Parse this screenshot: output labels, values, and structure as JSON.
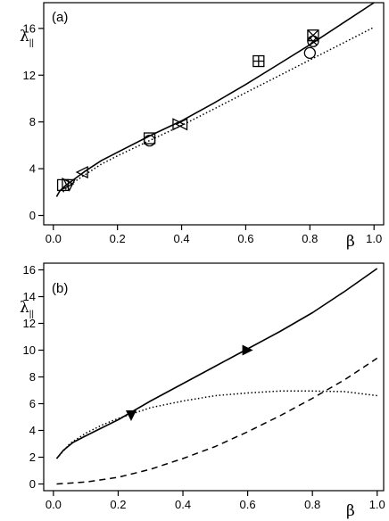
{
  "chart_data": [
    {
      "type": "line",
      "panel_label": "(a)",
      "xlabel": "β",
      "ylabel": "λ",
      "ylabel_sub": "||",
      "xlim": [
        -0.03,
        1.03
      ],
      "ylim": [
        -0.8,
        18.2
      ],
      "xticks": [
        0.0,
        0.2,
        0.4,
        0.6,
        0.8,
        1.0
      ],
      "xtick_labels": [
        "0.0",
        "0.2",
        "0.4",
        "0.6",
        "0.8",
        "1.0"
      ],
      "yticks": [
        0,
        4,
        8,
        12,
        16
      ],
      "ytick_labels": [
        "0",
        "4",
        "8",
        "12",
        "16"
      ],
      "grid": false,
      "series": [
        {
          "style": "solid",
          "x": [
            0.01,
            0.02,
            0.04,
            0.07,
            0.1,
            0.15,
            0.2,
            0.3,
            0.4,
            0.5,
            0.6,
            0.7,
            0.8,
            0.9,
            1.0
          ],
          "y": [
            1.6,
            2.1,
            2.6,
            3.2,
            3.8,
            4.7,
            5.4,
            6.8,
            8.1,
            9.6,
            11.2,
            12.9,
            14.6,
            16.4,
            18.2
          ]
        },
        {
          "style": "dotted",
          "x": [
            0.03,
            0.05,
            0.1,
            0.15,
            0.2,
            0.3,
            0.4,
            0.5,
            0.6,
            0.7,
            0.8,
            0.9,
            1.0
          ],
          "y": [
            2.0,
            2.6,
            3.5,
            4.4,
            5.1,
            6.4,
            7.7,
            9.1,
            10.5,
            11.9,
            13.3,
            14.7,
            16.1
          ]
        }
      ],
      "markers": [
        {
          "x": 0.03,
          "y": 2.6,
          "shape": "square"
        },
        {
          "x": 0.045,
          "y": 2.7,
          "shape": "triangle-right"
        },
        {
          "x": 0.05,
          "y": 2.6,
          "shape": "triangle-down"
        },
        {
          "x": 0.09,
          "y": 3.7,
          "shape": "triangle-left"
        },
        {
          "x": 0.3,
          "y": 6.6,
          "shape": "square"
        },
        {
          "x": 0.3,
          "y": 6.4,
          "shape": "circle"
        },
        {
          "x": 0.39,
          "y": 7.8,
          "shape": "triangle-right"
        },
        {
          "x": 0.4,
          "y": 7.8,
          "shape": "triangle-left"
        },
        {
          "x": 0.64,
          "y": 13.2,
          "shape": "square-plus"
        },
        {
          "x": 0.8,
          "y": 13.9,
          "shape": "circle"
        },
        {
          "x": 0.81,
          "y": 14.9,
          "shape": "circle-x"
        },
        {
          "x": 0.81,
          "y": 15.4,
          "shape": "square-x"
        }
      ]
    },
    {
      "type": "line",
      "panel_label": "(b)",
      "xlabel": "β",
      "ylabel": "λ",
      "ylabel_sub": "||",
      "xlim": [
        -0.03,
        1.02
      ],
      "ylim": [
        -0.5,
        16.5
      ],
      "xticks": [
        0.0,
        0.2,
        0.4,
        0.6,
        0.8,
        1.0
      ],
      "xtick_labels": [
        "0.0",
        "0.2",
        "0.4",
        "0.6",
        "0.8",
        "1.0"
      ],
      "yticks": [
        0,
        2,
        4,
        6,
        8,
        10,
        12,
        14,
        16
      ],
      "ytick_labels": [
        "0",
        "2",
        "4",
        "6",
        "8",
        "10",
        "12",
        "14",
        "16"
      ],
      "grid": false,
      "series": [
        {
          "style": "solid",
          "x": [
            0.01,
            0.03,
            0.06,
            0.1,
            0.15,
            0.2,
            0.3,
            0.4,
            0.5,
            0.6,
            0.7,
            0.8,
            0.9,
            1.0
          ],
          "y": [
            1.9,
            2.5,
            3.1,
            3.6,
            4.2,
            4.8,
            6.2,
            7.5,
            8.8,
            10.1,
            11.4,
            12.8,
            14.4,
            16.1
          ]
        },
        {
          "style": "dotted",
          "x": [
            0.01,
            0.05,
            0.1,
            0.15,
            0.2,
            0.3,
            0.4,
            0.5,
            0.6,
            0.7,
            0.8,
            0.9,
            1.0
          ],
          "y": [
            1.9,
            3.0,
            3.8,
            4.4,
            4.9,
            5.7,
            6.2,
            6.6,
            6.8,
            6.95,
            6.95,
            6.9,
            6.6
          ]
        },
        {
          "style": "dashed",
          "x": [
            0.01,
            0.1,
            0.2,
            0.3,
            0.4,
            0.5,
            0.6,
            0.7,
            0.8,
            0.9,
            1.0
          ],
          "y": [
            0.0,
            0.15,
            0.5,
            1.1,
            1.9,
            2.8,
            3.9,
            5.1,
            6.4,
            7.8,
            9.4
          ]
        }
      ],
      "markers": [
        {
          "x": 0.24,
          "y": 5.1,
          "shape": "triangle-down"
        },
        {
          "x": 0.6,
          "y": 10.0,
          "shape": "triangle-right"
        }
      ]
    }
  ]
}
